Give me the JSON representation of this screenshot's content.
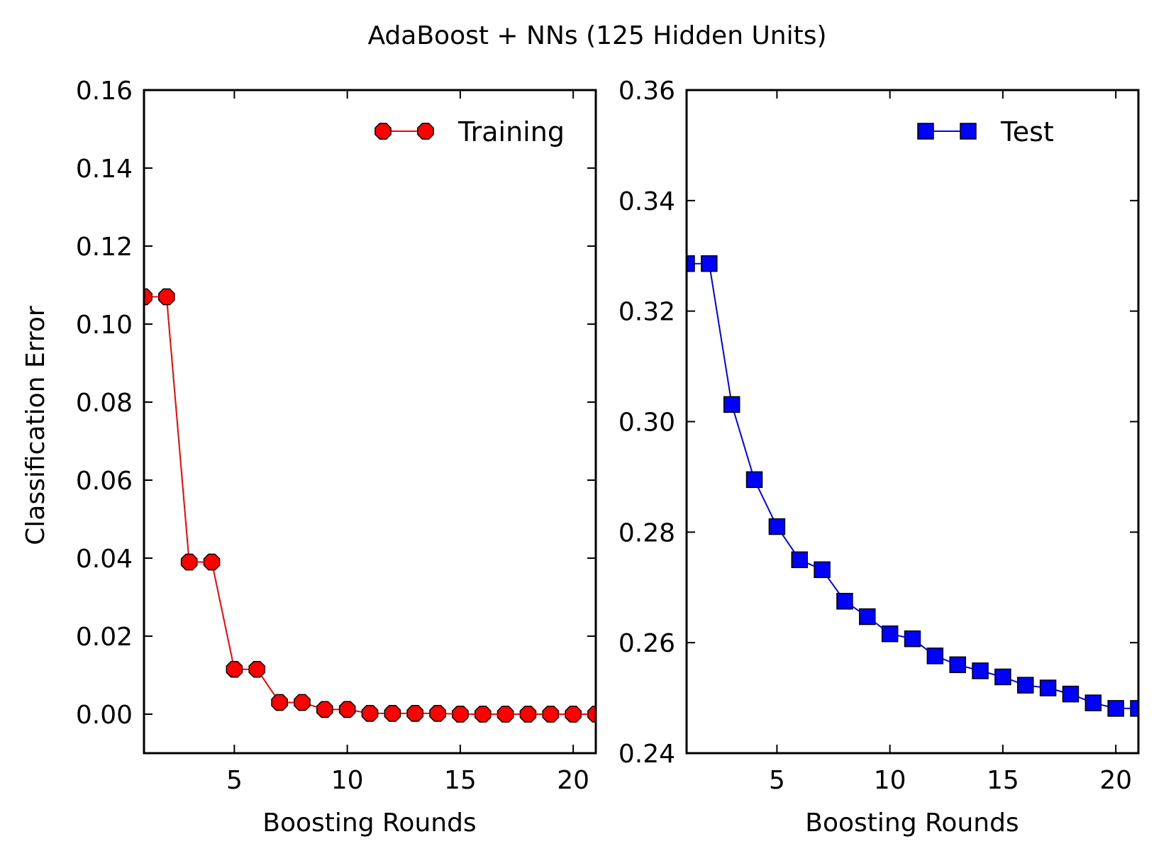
{
  "figure": {
    "title": "AdaBoost + NNs (125 Hidden Units)"
  },
  "chart_data": [
    {
      "type": "line",
      "xlabel": "Boosting Rounds",
      "ylabel": "Classification Error",
      "xlim": [
        1,
        21
      ],
      "ylim": [
        -0.01,
        0.16
      ],
      "xticks": [
        5,
        10,
        15,
        20
      ],
      "yticks": [
        0.0,
        0.02,
        0.04,
        0.06,
        0.08,
        0.1,
        0.12,
        0.14,
        0.16
      ],
      "ytick_labels": [
        "0.00",
        "0.02",
        "0.04",
        "0.06",
        "0.08",
        "0.10",
        "0.12",
        "0.14",
        "0.16"
      ],
      "legend_position": "top-right",
      "grid": false,
      "series": [
        {
          "name": "Training",
          "color": "#ff0000",
          "marker": "octagon",
          "x": [
            1,
            2,
            3,
            4,
            5,
            6,
            7,
            8,
            9,
            10,
            11,
            12,
            13,
            14,
            15,
            16,
            17,
            18,
            19,
            20,
            21
          ],
          "y": [
            0.107,
            0.107,
            0.039,
            0.039,
            0.0115,
            0.0115,
            0.003,
            0.003,
            0.0012,
            0.0012,
            0.0002,
            0.0002,
            0.0002,
            0.0002,
            0.0,
            0.0,
            0.0,
            0.0,
            0.0,
            0.0,
            0.0
          ]
        }
      ]
    },
    {
      "type": "line",
      "xlabel": "Boosting Rounds",
      "ylabel": "",
      "xlim": [
        1,
        21
      ],
      "ylim": [
        0.24,
        0.36
      ],
      "xticks": [
        5,
        10,
        15,
        20
      ],
      "yticks": [
        0.24,
        0.26,
        0.28,
        0.3,
        0.32,
        0.34,
        0.36
      ],
      "ytick_labels": [
        "0.24",
        "0.26",
        "0.28",
        "0.30",
        "0.32",
        "0.34",
        "0.36"
      ],
      "legend_position": "top-right",
      "grid": false,
      "series": [
        {
          "name": "Test",
          "color": "#0000ff",
          "marker": "square",
          "x": [
            1,
            2,
            3,
            4,
            5,
            6,
            7,
            8,
            9,
            10,
            11,
            12,
            13,
            14,
            15,
            16,
            17,
            18,
            19,
            20,
            21
          ],
          "y": [
            0.3286,
            0.3286,
            0.3031,
            0.2895,
            0.281,
            0.275,
            0.2732,
            0.2675,
            0.2647,
            0.2616,
            0.2607,
            0.2576,
            0.256,
            0.2549,
            0.2538,
            0.2523,
            0.2518,
            0.2507,
            0.2491,
            0.2481,
            0.2481
          ]
        }
      ]
    }
  ]
}
